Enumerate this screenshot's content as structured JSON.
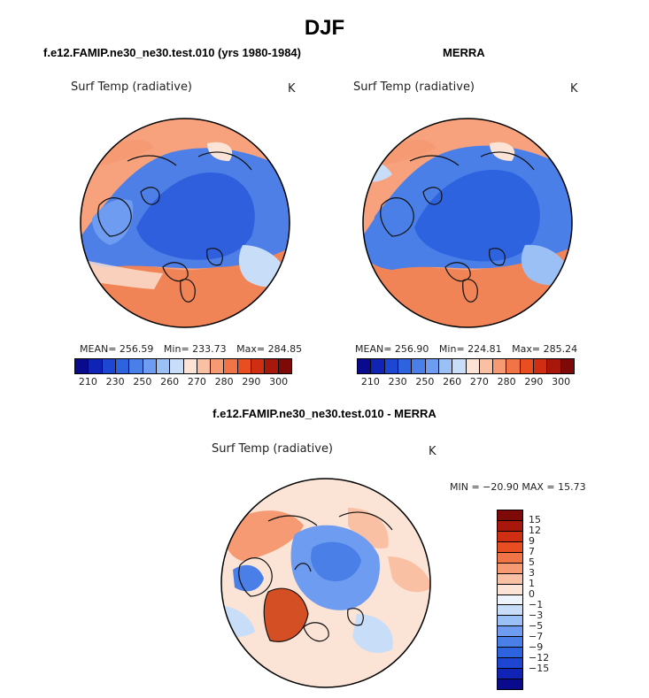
{
  "season_title": "DJF",
  "left_panel": {
    "title": "f.e12.FAMIP.ne30_ne30.test.010 (yrs 1980-1984)",
    "variable": "Surf Temp (radiative)",
    "units": "K",
    "mean_label": "MEAN=",
    "mean": "256.59",
    "min_label": "Min=",
    "min": "233.73",
    "max_label": "Max=",
    "max": "284.85"
  },
  "right_panel": {
    "title": "MERRA",
    "variable": "Surf Temp (radiative)",
    "units": "K",
    "mean_label": "MEAN=",
    "mean": "256.90",
    "min_label": "Min=",
    "min": "224.81",
    "max_label": "Max=",
    "max": "285.24"
  },
  "diff_panel": {
    "title": "f.e12.FAMIP.ne30_ne30.test.010 - MERRA",
    "variable": "Surf Temp (radiative)",
    "units": "K",
    "minmax_text": "MIN = −20.90 MAX =   15.73"
  },
  "abs_colorbar": {
    "colors": [
      "#0a0a8c",
      "#0f23b4",
      "#1d46d2",
      "#2e63e0",
      "#4a7fe8",
      "#6d9cf0",
      "#9bc0f5",
      "#c8ddf8",
      "#fbe3d6",
      "#f9c0a4",
      "#f69a73",
      "#f07445",
      "#e84e22",
      "#cf2e12",
      "#a8170c",
      "#7d0a07"
    ],
    "tick_labels": [
      "210",
      "230",
      "250",
      "260",
      "270",
      "280",
      "290",
      "300"
    ]
  },
  "diff_colorbar": {
    "colors": [
      "#7d0a07",
      "#a8170c",
      "#cf2e12",
      "#e84e22",
      "#f07445",
      "#f69a73",
      "#f9c0a4",
      "#fbe3d6",
      "#eef4fb",
      "#c8ddf8",
      "#9bc0f5",
      "#6d9cf0",
      "#4a7fe8",
      "#2e63e0",
      "#1d46d2",
      "#0f23b4",
      "#0a0a8c"
    ],
    "tick_labels": [
      "15",
      "12",
      "9",
      "7",
      "5",
      "3",
      "1",
      "0",
      "−1",
      "−3",
      "−5",
      "−7",
      "−9",
      "−12",
      "−15"
    ]
  }
}
